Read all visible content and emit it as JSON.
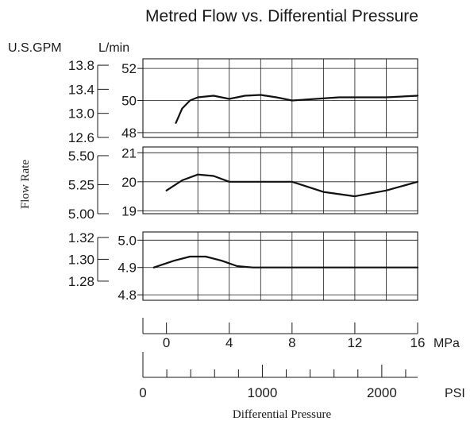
{
  "chart_data": {
    "type": "line",
    "title": "Metred Flow vs. Differential Pressure",
    "ylabel": "Flow Rate",
    "xlabel": "Differential Pressure",
    "unit_labels": {
      "gpm": "U.S.GPM",
      "lmin": "L/min",
      "mpa": "MPa",
      "psi": "PSI"
    },
    "x_mpa": {
      "ticks": [
        0,
        4,
        8,
        12,
        16
      ],
      "range": [
        -1.5,
        16
      ]
    },
    "x_psi": {
      "ticks": [
        0,
        1000,
        2000
      ],
      "range": [
        0,
        2300
      ],
      "minor_step": 200
    },
    "grid": true,
    "panels": [
      {
        "ylim": [
          47.7,
          52.6
        ],
        "lmin_ticks": [
          48,
          50,
          52
        ],
        "gpm_ticks": [
          "13.8",
          "13.4",
          "13.0",
          "12.6"
        ],
        "gpm_tick_lmin": [
          52.2,
          50.7,
          49.2,
          47.7
        ],
        "series": [
          {
            "x": [
              0.6,
              1.0,
              1.5,
              2.0,
              3.0,
              4.0,
              5.0,
              6.0,
              7.0,
              8.0,
              11.0,
              14.0,
              16.0
            ],
            "y": [
              48.6,
              49.5,
              50.0,
              50.2,
              50.3,
              50.1,
              50.3,
              50.35,
              50.2,
              50.0,
              50.2,
              50.2,
              50.3
            ]
          }
        ]
      },
      {
        "ylim": [
          18.9,
          21.2
        ],
        "lmin_ticks": [
          19,
          20,
          21
        ],
        "gpm_ticks": [
          "5.50",
          "5.25",
          "5.00"
        ],
        "gpm_tick_lmin": [
          20.9,
          19.9,
          18.9
        ],
        "series": [
          {
            "x": [
              0,
              1.0,
              2.0,
              3.0,
              4.0,
              5.0,
              7.0,
              8.0,
              10.0,
              12.0,
              14.0,
              16.0
            ],
            "y": [
              19.7,
              20.05,
              20.25,
              20.2,
              20.0,
              20.0,
              20.0,
              20.0,
              19.65,
              19.5,
              19.7,
              20.0
            ]
          }
        ]
      },
      {
        "ylim": [
          4.78,
          5.03
        ],
        "lmin_ticks": [
          "5.0",
          "4.9",
          "4.8"
        ],
        "gpm_ticks": [
          "1.32",
          "1.30",
          "1.28"
        ],
        "gpm_tick_lmin": [
          5.01,
          4.93,
          4.85
        ],
        "series": [
          {
            "x": [
              -0.8,
              0.5,
              1.5,
              2.5,
              3.5,
              4.5,
              5.5,
              8.0,
              12.0,
              16.0
            ],
            "y": [
              4.9,
              4.925,
              4.94,
              4.94,
              4.925,
              4.905,
              4.9,
              4.9,
              4.9,
              4.9
            ]
          }
        ]
      }
    ]
  }
}
